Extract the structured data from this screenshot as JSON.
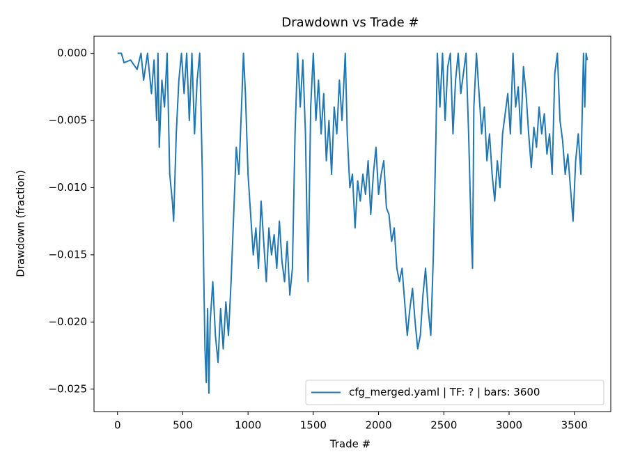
{
  "chart_data": {
    "type": "line",
    "title": "Drawdown vs Trade #",
    "x_label": "Trade #",
    "y_label": "Drawdown (fraction)",
    "xlim": [
      -180,
      3779
    ],
    "ylim": [
      -0.02667,
      0.00127
    ],
    "xticks": [
      0,
      500,
      1000,
      1500,
      2000,
      2500,
      3000,
      3500
    ],
    "yticks": [
      {
        "value": 0,
        "label": "0.000"
      },
      {
        "value": -0.005,
        "label": "−0.005"
      },
      {
        "value": -0.01,
        "label": "−0.010"
      },
      {
        "value": -0.015,
        "label": "−0.015"
      },
      {
        "value": -0.02,
        "label": "−0.020"
      },
      {
        "value": -0.025,
        "label": "−0.025"
      }
    ],
    "grid": false,
    "legend_position": "lower right",
    "series": [
      {
        "name": "cfg_merged.yaml | TF: ? | bars: 3600",
        "color": "#1f77b4",
        "x": [
          0,
          30,
          50,
          100,
          150,
          180,
          200,
          230,
          260,
          280,
          300,
          310,
          320,
          340,
          360,
          380,
          400,
          420,
          430,
          450,
          470,
          490,
          510,
          530,
          550,
          570,
          590,
          610,
          630,
          650,
          660,
          670,
          680,
          690,
          700,
          710,
          730,
          750,
          770,
          790,
          810,
          830,
          850,
          870,
          890,
          910,
          930,
          950,
          965,
          980,
          1000,
          1020,
          1040,
          1060,
          1080,
          1100,
          1120,
          1140,
          1160,
          1180,
          1200,
          1220,
          1240,
          1260,
          1280,
          1300,
          1320,
          1340,
          1360,
          1380,
          1400,
          1420,
          1440,
          1460,
          1480,
          1500,
          1520,
          1540,
          1560,
          1580,
          1600,
          1620,
          1640,
          1660,
          1680,
          1700,
          1720,
          1745,
          1760,
          1780,
          1800,
          1820,
          1840,
          1860,
          1880,
          1900,
          1920,
          1940,
          1960,
          1980,
          2000,
          2020,
          2040,
          2060,
          2080,
          2100,
          2120,
          2140,
          2160,
          2180,
          2200,
          2220,
          2240,
          2260,
          2280,
          2300,
          2320,
          2340,
          2360,
          2380,
          2400,
          2420,
          2440,
          2450,
          2470,
          2490,
          2510,
          2530,
          2550,
          2570,
          2590,
          2610,
          2630,
          2650,
          2670,
          2690,
          2710,
          2720,
          2730,
          2750,
          2770,
          2790,
          2810,
          2830,
          2850,
          2870,
          2890,
          2910,
          2930,
          2950,
          2970,
          2990,
          3010,
          3030,
          3050,
          3070,
          3090,
          3110,
          3130,
          3150,
          3170,
          3190,
          3210,
          3230,
          3250,
          3270,
          3290,
          3310,
          3330,
          3350,
          3370,
          3390,
          3410,
          3430,
          3450,
          3470,
          3490,
          3510,
          3530,
          3550,
          3570,
          3580,
          3590,
          3599
        ],
        "values": [
          0,
          0,
          -0.0007,
          -0.0005,
          -0.0012,
          0,
          -0.002,
          0,
          -0.003,
          -0.0005,
          -0.005,
          0,
          -0.007,
          -0.002,
          -0.004,
          0,
          -0.009,
          -0.011,
          -0.0125,
          -0.006,
          -0.002,
          0,
          -0.003,
          0,
          -0.005,
          0,
          -0.006,
          -0.002,
          0,
          -0.009,
          -0.016,
          -0.022,
          -0.0245,
          -0.019,
          -0.0253,
          -0.02,
          -0.017,
          -0.021,
          -0.023,
          -0.019,
          -0.022,
          -0.0185,
          -0.021,
          -0.017,
          -0.012,
          -0.007,
          -0.009,
          -0.004,
          0,
          -0.003,
          -0.009,
          -0.012,
          -0.015,
          -0.013,
          -0.016,
          -0.011,
          -0.014,
          -0.017,
          -0.013,
          -0.015,
          -0.0135,
          -0.016,
          -0.0125,
          -0.0155,
          -0.017,
          -0.014,
          -0.018,
          -0.016,
          -0.006,
          0,
          -0.004,
          -0.0005,
          -0.006,
          -0.017,
          -0.004,
          0,
          -0.005,
          -0.002,
          -0.006,
          -0.003,
          -0.008,
          -0.005,
          -0.009,
          -0.004,
          -0.006,
          -0.002,
          -0.005,
          0,
          -0.006,
          -0.01,
          -0.009,
          -0.013,
          -0.0095,
          -0.011,
          -0.009,
          -0.0105,
          -0.008,
          -0.012,
          -0.009,
          -0.007,
          -0.0105,
          -0.009,
          -0.008,
          -0.0115,
          -0.012,
          -0.014,
          -0.013,
          -0.016,
          -0.017,
          -0.016,
          -0.0185,
          -0.021,
          -0.019,
          -0.0175,
          -0.02,
          -0.022,
          -0.021,
          -0.018,
          -0.016,
          -0.019,
          -0.021,
          -0.015,
          -0.006,
          0,
          -0.004,
          0,
          -0.005,
          -0.001,
          0,
          -0.006,
          -0.002,
          0,
          -0.003,
          -0.0015,
          0,
          -0.006,
          -0.0135,
          -0.016,
          -0.004,
          0,
          -0.003,
          -0.006,
          -0.004,
          -0.008,
          -0.006,
          -0.009,
          -0.011,
          -0.008,
          -0.01,
          -0.006,
          -0.0045,
          -0.003,
          -0.006,
          0,
          -0.004,
          -0.0025,
          -0.006,
          -0.001,
          -0.003,
          -0.006,
          -0.0085,
          -0.0055,
          -0.007,
          -0.004,
          -0.006,
          -0.0045,
          -0.0075,
          -0.006,
          -0.009,
          -0.0015,
          0,
          -0.005,
          -0.0065,
          -0.009,
          -0.0075,
          -0.01,
          -0.0125,
          -0.008,
          -0.006,
          -0.009,
          0,
          -0.004,
          0,
          -0.0005
        ]
      }
    ]
  }
}
